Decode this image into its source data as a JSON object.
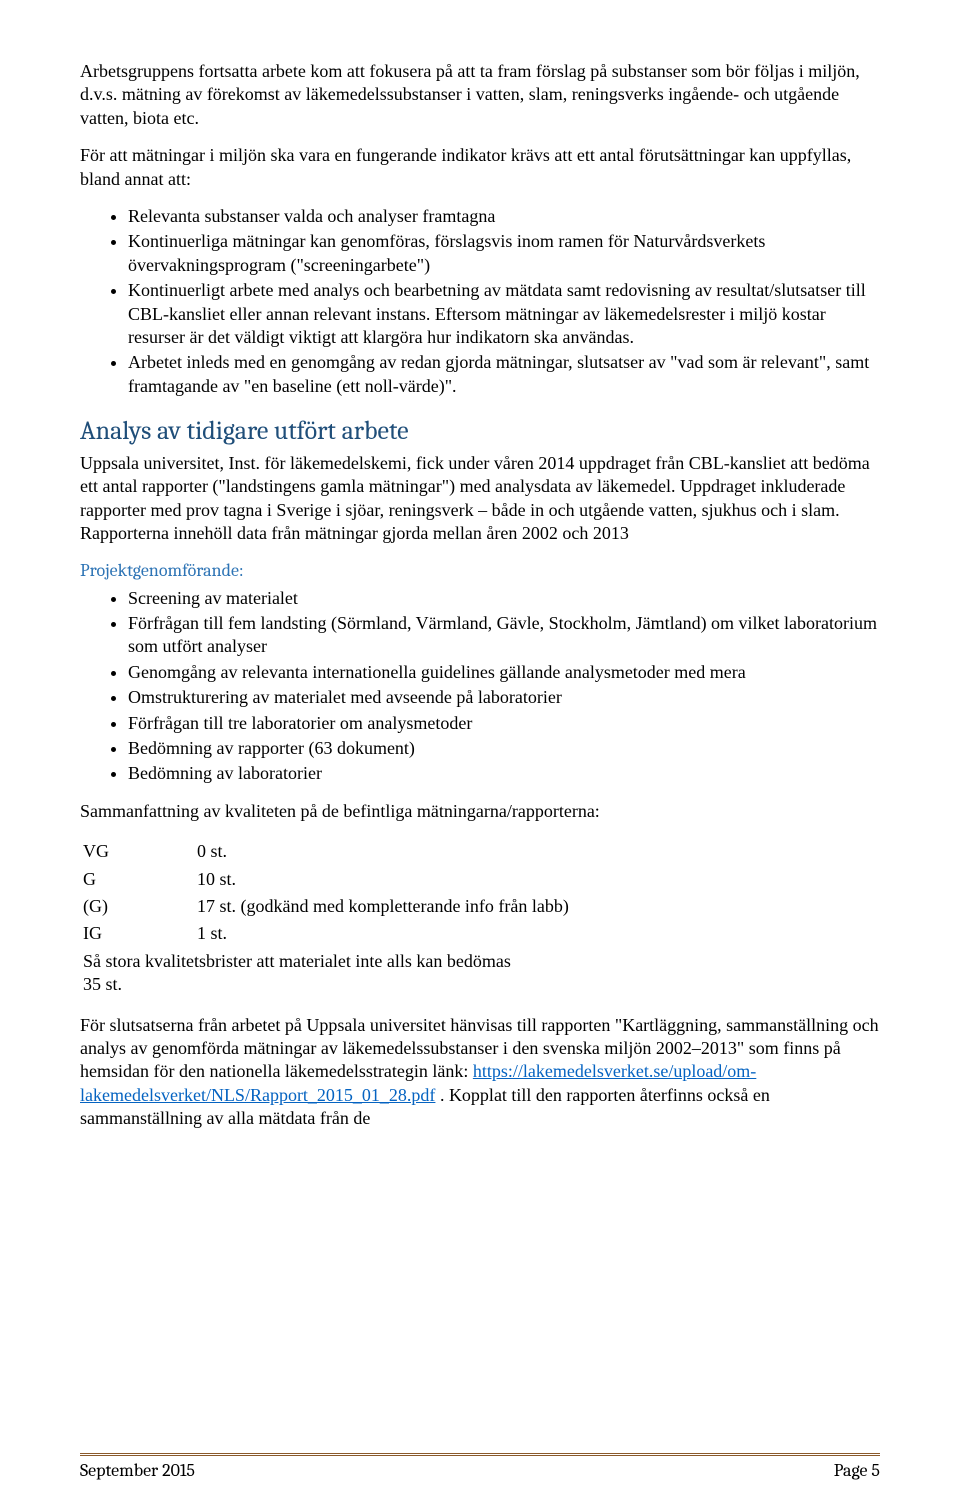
{
  "colors": {
    "heading": "#1f4e79",
    "subheading": "#2e74b5",
    "link": "#0563c1",
    "footer_rule": "#8b5a2b",
    "text": "#000000",
    "background": "#ffffff"
  },
  "typography": {
    "body_family": "Times New Roman",
    "heading_family": "Cambria",
    "body_size_pt": 12,
    "heading_size_pt": 18
  },
  "para1": "Arbetsgruppens fortsatta arbete kom att fokusera på att ta fram förslag på substanser som bör följas i miljön, d.v.s. mätning av förekomst av läkemedelssubstanser i vatten, slam, reningsverks ingående- och utgående vatten, biota etc.",
  "para2": "För att mätningar i miljön ska vara en fungerande indikator krävs att ett antal förutsättningar kan uppfyllas, bland annat att:",
  "bullets1": [
    "Relevanta substanser valda och analyser framtagna",
    "Kontinuerliga mätningar kan genomföras, förslagsvis inom ramen för Naturvårdsverkets övervakningsprogram (\"screeningarbete\")",
    "Kontinuerligt arbete med analys och bearbetning av mätdata samt redovisning av resultat/slutsatser till CBL-kansliet eller annan relevant instans. Eftersom mätningar av läkemedelsrester i miljö kostar resurser är det väldigt viktigt att klargöra hur indikatorn ska användas.",
    "Arbetet inleds med en genomgång av redan gjorda mätningar, slutsatser av \"vad som är relevant\", samt framtagande av \"en baseline (ett noll-värde)\"."
  ],
  "heading_analys": "Analys av tidigare utfört arbete",
  "para3": "Uppsala universitet, Inst. för läkemedelskemi, fick under våren 2014 uppdraget från CBL-kansliet att bedöma ett antal rapporter (\"landstingens gamla mätningar\") med analysdata av läkemedel. Uppdraget inkluderade rapporter med prov tagna i Sverige i sjöar, reningsverk – både in och utgående vatten, sjukhus och i slam. Rapporterna innehöll data från mätningar gjorda mellan åren 2002 och 2013",
  "subhead_proj": "Projektgenomförande:",
  "bullets2": [
    "Screening av materialet",
    "Förfrågan till fem landsting (Sörmland, Värmland, Gävle, Stockholm, Jämtland) om vilket laboratorium som utfört analyser",
    "Genomgång av relevanta internationella guidelines gällande analysmetoder med mera",
    "Omstrukturering av materialet med avseende på laboratorier",
    "Förfrågan till tre laboratorier om analysmetoder",
    "Bedömning av rapporter (63 dokument)",
    "Bedömning av laboratorier"
  ],
  "para4": "Sammanfattning av kvaliteten på de befintliga mätningarna/rapporterna:",
  "qual": [
    {
      "grade": "VG",
      "text": "0 st."
    },
    {
      "grade": "G",
      "text": "10 st."
    },
    {
      "grade": "(G)",
      "text": "17 st. (godkänd med kompletterande info från labb)"
    },
    {
      "grade": "IG",
      "text": "1 st."
    }
  ],
  "qual_tail_left": "Så stora kvalitetsbrister att materialet inte alls kan bedömas",
  "qual_tail_right": "35 st.",
  "para5_a": "För slutsatserna från arbetet på Uppsala universitet hänvisas till rapporten \"Kartläggning, sammanställning och analys av genomförda mätningar av läkemedelssubstanser i den svenska miljön 2002–2013\" som finns på hemsidan för den nationella läkemedelsstrategin länk: ",
  "link_text": "https://lakemedelsverket.se/upload/om-lakemedelsverket/NLS/Rapport_2015_01_28.pdf",
  "para5_b": " . Kopplat till den rapporten återfinns också en sammanställning av alla mätdata från de",
  "footer_left": "September 2015",
  "footer_right": "Page 5"
}
